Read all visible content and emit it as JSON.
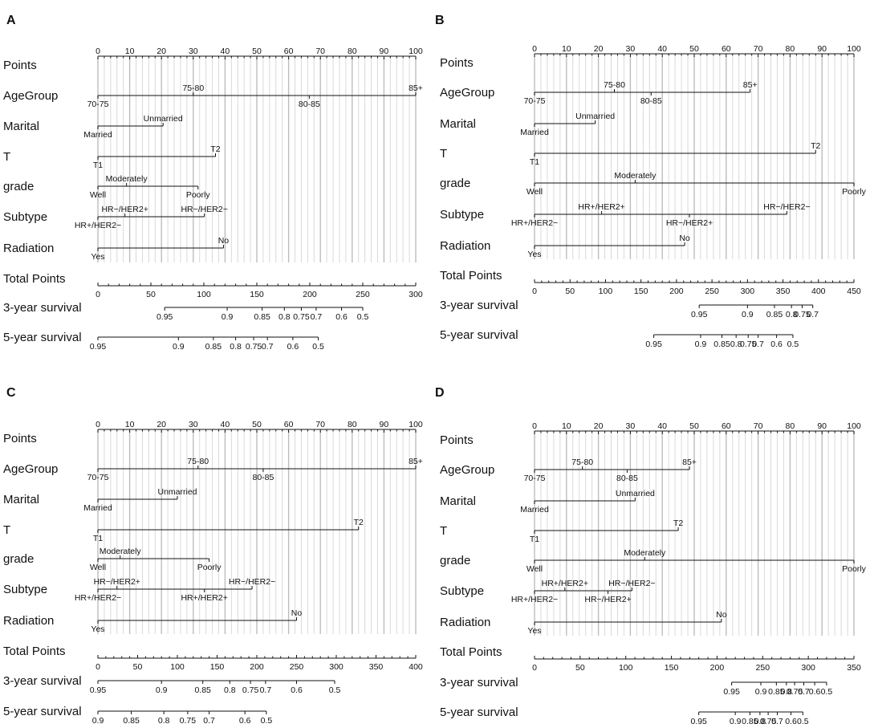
{
  "chart_data": [
    {
      "type": "nomogram",
      "panel": "A",
      "rows": [
        "Points",
        "AgeGroup",
        "Marital",
        "T",
        "grade",
        "Subtype",
        "Radiation",
        "Total Points",
        "3-year survival",
        "5-year survival"
      ],
      "points_axis": {
        "min": 0,
        "max": 100,
        "ticks": [
          0,
          10,
          20,
          30,
          40,
          50,
          60,
          70,
          80,
          90,
          100
        ]
      },
      "variables": [
        {
          "name": "AgeGroup",
          "levels": [
            {
              "label": "70-75",
              "points": 0,
              "pos": "below"
            },
            {
              "label": "75-80",
              "points": 30,
              "pos": "above"
            },
            {
              "label": "80-85",
              "points": 66.5,
              "pos": "below"
            },
            {
              "label": "85+",
              "points": 100,
              "pos": "above"
            }
          ]
        },
        {
          "name": "Marital",
          "levels": [
            {
              "label": "Married",
              "points": 0,
              "pos": "below"
            },
            {
              "label": "Unmarried",
              "points": 20.5,
              "pos": "above"
            }
          ]
        },
        {
          "name": "T",
          "levels": [
            {
              "label": "T1",
              "points": 0,
              "pos": "below"
            },
            {
              "label": "T2",
              "points": 37,
              "pos": "above"
            }
          ]
        },
        {
          "name": "grade",
          "levels": [
            {
              "label": "Well",
              "points": 0,
              "pos": "below"
            },
            {
              "label": "Moderately",
              "points": 9,
              "pos": "above"
            },
            {
              "label": "Poorly",
              "points": 31.5,
              "pos": "below"
            }
          ]
        },
        {
          "name": "Subtype",
          "levels": [
            {
              "label": "HR+/HER2−",
              "points": 0,
              "pos": "below"
            },
            {
              "label": "HR−/HER2+",
              "points": 8.5,
              "pos": "above"
            },
            {
              "label": "HR−/HER2−",
              "points": 33.5,
              "pos": "above"
            }
          ]
        },
        {
          "name": "Radiation",
          "levels": [
            {
              "label": "Yes",
              "points": 0,
              "pos": "below"
            },
            {
              "label": "No",
              "points": 39.5,
              "pos": "above"
            }
          ]
        }
      ],
      "total_points": {
        "min": 0,
        "max": 300,
        "ticks": [
          0,
          50,
          100,
          150,
          200,
          250,
          300
        ]
      },
      "survival_3yr": {
        "ticks": [
          {
            "label": "0.95",
            "total": 63
          },
          {
            "label": "0.9",
            "total": 122
          },
          {
            "label": "0.85",
            "total": 155
          },
          {
            "label": "0.8",
            "total": 176
          },
          {
            "label": "0.75",
            "total": 192
          },
          {
            "label": "0.7",
            "total": 206
          },
          {
            "label": "0.6",
            "total": 230
          },
          {
            "label": "0.5",
            "total": 250
          }
        ]
      },
      "survival_5yr": {
        "ticks": [
          {
            "label": "0.95",
            "total": 0
          },
          {
            "label": "0.9",
            "total": 76
          },
          {
            "label": "0.85",
            "total": 109
          },
          {
            "label": "0.8",
            "total": 130
          },
          {
            "label": "0.75",
            "total": 147
          },
          {
            "label": "0.7",
            "total": 160
          },
          {
            "label": "0.6",
            "total": 184
          },
          {
            "label": "0.5",
            "total": 208
          }
        ]
      }
    },
    {
      "type": "nomogram",
      "panel": "B",
      "rows": [
        "Points",
        "AgeGroup",
        "Marital",
        "T",
        "grade",
        "Subtype",
        "Radiation",
        "Total Points",
        "3-year survival",
        "5-year survival"
      ],
      "points_axis": {
        "min": 0,
        "max": 100,
        "ticks": [
          0,
          10,
          20,
          30,
          40,
          50,
          60,
          70,
          80,
          90,
          100
        ]
      },
      "variables": [
        {
          "name": "AgeGroup",
          "levels": [
            {
              "label": "70-75",
              "points": 0,
              "pos": "below"
            },
            {
              "label": "75-80",
              "points": 25,
              "pos": "above"
            },
            {
              "label": "80-85",
              "points": 36.5,
              "pos": "below"
            },
            {
              "label": "85+",
              "points": 67.5,
              "pos": "above"
            }
          ]
        },
        {
          "name": "Marital",
          "levels": [
            {
              "label": "Married",
              "points": 0,
              "pos": "below"
            },
            {
              "label": "Unmarried",
              "points": 19,
              "pos": "above"
            }
          ]
        },
        {
          "name": "T",
          "levels": [
            {
              "label": "T1",
              "points": 0,
              "pos": "below"
            },
            {
              "label": "T2",
              "points": 88,
              "pos": "above"
            }
          ]
        },
        {
          "name": "grade",
          "levels": [
            {
              "label": "Well",
              "points": 0,
              "pos": "below"
            },
            {
              "label": "Moderately",
              "points": 31.5,
              "pos": "above"
            },
            {
              "label": "Poorly",
              "points": 100,
              "pos": "below"
            }
          ]
        },
        {
          "name": "Subtype",
          "levels": [
            {
              "label": "HR+/HER2−",
              "points": 0,
              "pos": "below"
            },
            {
              "label": "HR+/HER2+",
              "points": 21,
              "pos": "above"
            },
            {
              "label": "HR−/HER2+",
              "points": 48.5,
              "pos": "below"
            },
            {
              "label": "HR−/HER2−",
              "points": 79,
              "pos": "above"
            }
          ]
        },
        {
          "name": "Radiation",
          "levels": [
            {
              "label": "Yes",
              "points": 0,
              "pos": "below"
            },
            {
              "label": "No",
              "points": 47,
              "pos": "above"
            }
          ]
        }
      ],
      "total_points": {
        "min": 0,
        "max": 450,
        "ticks": [
          0,
          50,
          100,
          150,
          200,
          250,
          300,
          350,
          400,
          450
        ]
      },
      "survival_3yr": {
        "ticks": [
          {
            "label": "0.95",
            "total": 232
          },
          {
            "label": "0.9",
            "total": 300
          },
          {
            "label": "0.85",
            "total": 338
          },
          {
            "label": "0.8",
            "total": 362
          },
          {
            "label": "0.75",
            "total": 377
          },
          {
            "label": "0.7",
            "total": 392
          }
        ]
      },
      "survival_5yr": {
        "ticks": [
          {
            "label": "0.95",
            "total": 168
          },
          {
            "label": "0.9",
            "total": 234
          },
          {
            "label": "0.85",
            "total": 264
          },
          {
            "label": "0.8",
            "total": 284
          },
          {
            "label": "0.75",
            "total": 301
          },
          {
            "label": "0.7",
            "total": 315
          },
          {
            "label": "0.6",
            "total": 341
          },
          {
            "label": "0.5",
            "total": 364
          }
        ]
      }
    },
    {
      "type": "nomogram",
      "panel": "C",
      "rows": [
        "Points",
        "AgeGroup",
        "Marital",
        "T",
        "grade",
        "Subtype",
        "Radiation",
        "Total Points",
        "3-year survival",
        "5-year survival"
      ],
      "points_axis": {
        "min": 0,
        "max": 100,
        "ticks": [
          0,
          10,
          20,
          30,
          40,
          50,
          60,
          70,
          80,
          90,
          100
        ]
      },
      "variables": [
        {
          "name": "AgeGroup",
          "levels": [
            {
              "label": "70-75",
              "points": 0,
              "pos": "below"
            },
            {
              "label": "75-80",
              "points": 31.5,
              "pos": "above"
            },
            {
              "label": "80-85",
              "points": 52,
              "pos": "below"
            },
            {
              "label": "85+",
              "points": 100,
              "pos": "above"
            }
          ]
        },
        {
          "name": "Marital",
          "levels": [
            {
              "label": "Married",
              "points": 0,
              "pos": "below"
            },
            {
              "label": "Unmarried",
              "points": 25,
              "pos": "above"
            }
          ]
        },
        {
          "name": "T",
          "levels": [
            {
              "label": "T1",
              "points": 0,
              "pos": "below"
            },
            {
              "label": "T2",
              "points": 82,
              "pos": "above"
            }
          ]
        },
        {
          "name": "grade",
          "levels": [
            {
              "label": "Well",
              "points": 0,
              "pos": "below"
            },
            {
              "label": "Moderately",
              "points": 7,
              "pos": "above"
            },
            {
              "label": "Poorly",
              "points": 35,
              "pos": "below"
            }
          ]
        },
        {
          "name": "Subtype",
          "levels": [
            {
              "label": "HR+/HER2−",
              "points": 0,
              "pos": "below"
            },
            {
              "label": "HR−/HER2+",
              "points": 6,
              "pos": "above"
            },
            {
              "label": "HR+/HER2+",
              "points": 33.5,
              "pos": "below"
            },
            {
              "label": "HR−/HER2−",
              "points": 48.5,
              "pos": "above"
            }
          ]
        },
        {
          "name": "Radiation",
          "levels": [
            {
              "label": "Yes",
              "points": 0,
              "pos": "below"
            },
            {
              "label": "No",
              "points": 62.5,
              "pos": "above"
            }
          ]
        }
      ],
      "total_points": {
        "min": 0,
        "max": 400,
        "ticks": [
          0,
          50,
          100,
          150,
          200,
          250,
          300,
          350,
          400
        ]
      },
      "survival_3yr": {
        "ticks": [
          {
            "label": "0.95",
            "total": 0
          },
          {
            "label": "0.9",
            "total": 80
          },
          {
            "label": "0.85",
            "total": 132
          },
          {
            "label": "0.8",
            "total": 166
          },
          {
            "label": "0.75",
            "total": 192
          },
          {
            "label": "0.7",
            "total": 211
          },
          {
            "label": "0.6",
            "total": 250
          },
          {
            "label": "0.5",
            "total": 298
          }
        ]
      },
      "survival_5yr": {
        "ticks": [
          {
            "label": "0.9",
            "total": 0
          },
          {
            "label": "0.85",
            "total": 42
          },
          {
            "label": "0.8",
            "total": 83
          },
          {
            "label": "0.75",
            "total": 113
          },
          {
            "label": "0.7",
            "total": 140
          },
          {
            "label": "0.6",
            "total": 185
          },
          {
            "label": "0.5",
            "total": 212
          }
        ]
      }
    },
    {
      "type": "nomogram",
      "panel": "D",
      "rows": [
        "Points",
        "AgeGroup",
        "Marital",
        "T",
        "grade",
        "Subtype",
        "Radiation",
        "Total Points",
        "3-year survival",
        "5-year survival"
      ],
      "points_axis": {
        "min": 0,
        "max": 100,
        "ticks": [
          0,
          10,
          20,
          30,
          40,
          50,
          60,
          70,
          80,
          90,
          100
        ]
      },
      "variables": [
        {
          "name": "AgeGroup",
          "levels": [
            {
              "label": "70-75",
              "points": 0,
              "pos": "below"
            },
            {
              "label": "75-80",
              "points": 15,
              "pos": "above"
            },
            {
              "label": "80-85",
              "points": 29,
              "pos": "below"
            },
            {
              "label": "85+",
              "points": 48.5,
              "pos": "above"
            }
          ]
        },
        {
          "name": "Marital",
          "levels": [
            {
              "label": "Married",
              "points": 0,
              "pos": "below"
            },
            {
              "label": "Unmarried",
              "points": 31.5,
              "pos": "above"
            }
          ]
        },
        {
          "name": "T",
          "levels": [
            {
              "label": "T1",
              "points": 0,
              "pos": "below"
            },
            {
              "label": "T2",
              "points": 45,
              "pos": "above"
            }
          ]
        },
        {
          "name": "grade",
          "levels": [
            {
              "label": "Well",
              "points": 0,
              "pos": "below"
            },
            {
              "label": "Moderately",
              "points": 34.5,
              "pos": "above"
            },
            {
              "label": "Poorly",
              "points": 100,
              "pos": "below"
            }
          ]
        },
        {
          "name": "Subtype",
          "levels": [
            {
              "label": "HR+/HER2−",
              "points": 0,
              "pos": "below"
            },
            {
              "label": "HR+/HER2+",
              "points": 9.5,
              "pos": "above"
            },
            {
              "label": "HR−/HER2+",
              "points": 23,
              "pos": "below"
            },
            {
              "label": "HR−/HER2−",
              "points": 30.5,
              "pos": "above"
            }
          ]
        },
        {
          "name": "Radiation",
          "levels": [
            {
              "label": "Yes",
              "points": 0,
              "pos": "below"
            },
            {
              "label": "No",
              "points": 58.5,
              "pos": "above"
            }
          ]
        }
      ],
      "total_points": {
        "min": 0,
        "max": 350,
        "ticks": [
          0,
          50,
          100,
          150,
          200,
          250,
          300,
          350
        ]
      },
      "survival_3yr": {
        "ticks": [
          {
            "label": "0.95",
            "total": 216
          },
          {
            "label": "0.9",
            "total": 248
          },
          {
            "label": "0.85",
            "total": 265
          },
          {
            "label": "0.8",
            "total": 276
          },
          {
            "label": "0.75",
            "total": 285
          },
          {
            "label": "0.7",
            "total": 295
          },
          {
            "label": "0.6",
            "total": 307
          },
          {
            "label": "0.5",
            "total": 320
          }
        ]
      },
      "survival_5yr": {
        "ticks": [
          {
            "label": "0.95",
            "total": 180
          },
          {
            "label": "0.9",
            "total": 220
          },
          {
            "label": "0.85",
            "total": 236
          },
          {
            "label": "0.8",
            "total": 247
          },
          {
            "label": "0.75",
            "total": 256
          },
          {
            "label": "0.7",
            "total": 266
          },
          {
            "label": "0.6",
            "total": 281
          },
          {
            "label": "0.5",
            "total": 294
          }
        ]
      }
    }
  ]
}
